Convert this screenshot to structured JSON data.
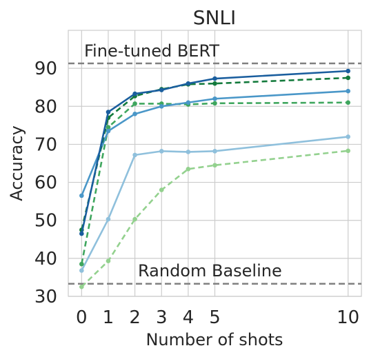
{
  "chart_data": {
    "type": "line",
    "title": "SNLI",
    "xlabel": "Number of shots",
    "ylabel": "Accuracy",
    "xlim": [
      -0.5,
      10.5
    ],
    "ylim": [
      30,
      100
    ],
    "x_ticks": [
      0,
      1,
      2,
      3,
      4,
      5,
      10
    ],
    "y_ticks": [
      30,
      40,
      50,
      60,
      70,
      80,
      90
    ],
    "grid": true,
    "x": [
      0,
      1,
      2,
      3,
      4,
      5,
      10
    ],
    "series": [
      {
        "color": "#1a5e9e",
        "dashed": false,
        "values": [
          46.5,
          78.5,
          83.3,
          84.3,
          86.0,
          87.3,
          89.3
        ]
      },
      {
        "color": "#137a3c",
        "dashed": true,
        "values": [
          47.5,
          77.0,
          82.7,
          84.5,
          85.8,
          86.0,
          87.5
        ]
      },
      {
        "color": "#4a97c8",
        "dashed": false,
        "values": [
          56.5,
          73.5,
          78.0,
          80.0,
          81.0,
          82.0,
          84.0
        ]
      },
      {
        "color": "#3fa65e",
        "dashed": true,
        "values": [
          38.5,
          74.5,
          80.7,
          80.7,
          80.5,
          80.8,
          81.0
        ]
      },
      {
        "color": "#8fc0dc",
        "dashed": false,
        "values": [
          36.8,
          50.3,
          67.2,
          68.2,
          68.0,
          68.2,
          72.0
        ]
      },
      {
        "color": "#93d18e",
        "dashed": true,
        "values": [
          32.5,
          39.3,
          50.3,
          58.0,
          63.5,
          64.5,
          68.3
        ]
      }
    ],
    "reference_lines": [
      {
        "label": "Fine-tuned BERT",
        "value": 91.3,
        "color": "#808080"
      },
      {
        "label": "Random Baseline",
        "value": 33.3,
        "color": "#808080"
      }
    ]
  }
}
